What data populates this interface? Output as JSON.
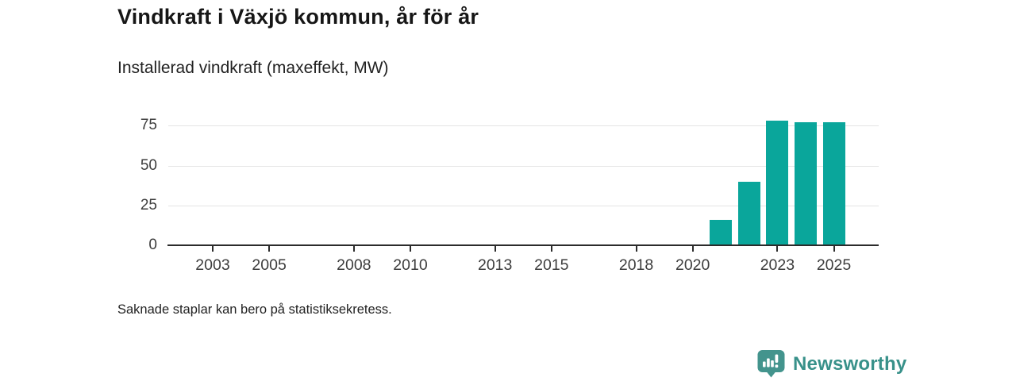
{
  "header": {
    "title": "Vindkraft i Växjö kommun, år för år",
    "subtitle": "Installerad vindkraft (maxeffekt, MW)"
  },
  "footnote": "Saknade staplar kan bero på statistiksekretess.",
  "branding": {
    "wordmark": "Newsworthy",
    "logo_icon": "bar-chart-speech-pin-icon"
  },
  "colors": {
    "bar": "#0aa69b",
    "axis": "#2b2b2b",
    "grid": "#e4e4e4",
    "title_text": "#161616",
    "label_text": "#3d3d3d",
    "brand": "#38918a"
  },
  "chart_data": {
    "type": "bar",
    "title": "Vindkraft i Växjö kommun, år för år",
    "subtitle": "Installerad vindkraft (maxeffekt, MW)",
    "ylabel": "Installerad vindkraft (maxeffekt, MW)",
    "unit": "MW",
    "x_domain": [
      2002,
      2026
    ],
    "x_ticks": [
      2003,
      2005,
      2008,
      2010,
      2013,
      2015,
      2018,
      2020,
      2023,
      2025
    ],
    "y_ticks": [
      0,
      25,
      50,
      75
    ],
    "ylim": [
      0,
      83
    ],
    "grid": "horizontal",
    "legend": "none",
    "bars": [
      {
        "year": 2021,
        "value": 16
      },
      {
        "year": 2022,
        "value": 40
      },
      {
        "year": 2023,
        "value": 78
      },
      {
        "year": 2024,
        "value": 77
      },
      {
        "year": 2025,
        "value": 77
      }
    ],
    "note": "Saknade staplar kan bero på statistiksekretess."
  }
}
